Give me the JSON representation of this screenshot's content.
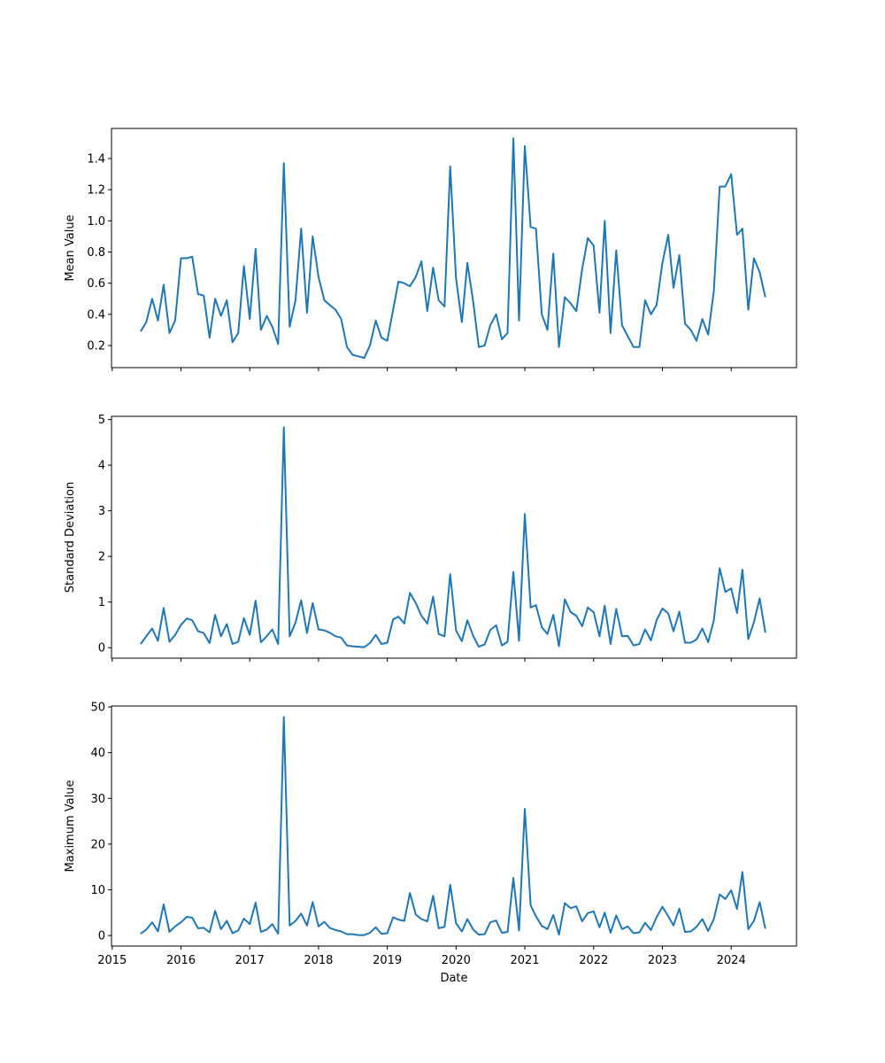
{
  "chart_data": [
    {
      "type": "line",
      "ylabel": "Mean Value",
      "xlabel": "",
      "x_start": "2015-06",
      "x_frequency": "monthly",
      "ylim": [
        0.058,
        1.593
      ],
      "yticks": [
        0.2,
        0.4,
        0.6,
        0.8,
        1.0,
        1.2,
        1.4
      ],
      "ytick_format": 1,
      "color": "#1f77b4",
      "values": [
        0.29,
        0.35,
        0.5,
        0.36,
        0.59,
        0.28,
        0.36,
        0.76,
        0.76,
        0.77,
        0.53,
        0.52,
        0.25,
        0.5,
        0.39,
        0.49,
        0.22,
        0.28,
        0.71,
        0.37,
        0.82,
        0.3,
        0.39,
        0.32,
        0.21,
        1.37,
        0.32,
        0.49,
        0.95,
        0.41,
        0.9,
        0.64,
        0.49,
        0.46,
        0.43,
        0.37,
        0.19,
        0.14,
        0.13,
        0.12,
        0.2,
        0.36,
        0.25,
        0.23,
        0.43,
        0.61,
        0.6,
        0.58,
        0.64,
        0.74,
        0.42,
        0.7,
        0.49,
        0.45,
        1.35,
        0.63,
        0.35,
        0.73,
        0.48,
        0.19,
        0.2,
        0.33,
        0.4,
        0.24,
        0.28,
        1.53,
        0.36,
        1.48,
        0.96,
        0.95,
        0.4,
        0.3,
        0.79,
        0.19,
        0.51,
        0.47,
        0.42,
        0.69,
        0.89,
        0.84,
        0.41,
        1.0,
        0.28,
        0.81,
        0.33,
        0.26,
        0.19,
        0.19,
        0.49,
        0.4,
        0.46,
        0.73,
        0.91,
        0.57,
        0.78,
        0.34,
        0.3,
        0.23,
        0.37,
        0.27,
        0.55,
        1.22,
        1.22,
        1.3,
        0.91,
        0.95,
        0.43,
        0.76,
        0.67,
        0.51
      ]
    },
    {
      "type": "line",
      "ylabel": "Standard Deviation",
      "xlabel": "",
      "x_start": "2015-06",
      "x_frequency": "monthly",
      "ylim": [
        -0.23,
        5.07
      ],
      "yticks": [
        0,
        1,
        2,
        3,
        4,
        5
      ],
      "ytick_format": 0,
      "color": "#1f77b4",
      "values": [
        0.08,
        0.25,
        0.42,
        0.15,
        0.87,
        0.13,
        0.28,
        0.5,
        0.64,
        0.6,
        0.36,
        0.32,
        0.1,
        0.72,
        0.25,
        0.52,
        0.08,
        0.13,
        0.65,
        0.28,
        1.03,
        0.12,
        0.25,
        0.4,
        0.08,
        4.83,
        0.25,
        0.55,
        1.04,
        0.32,
        0.98,
        0.4,
        0.38,
        0.33,
        0.25,
        0.22,
        0.05,
        0.03,
        0.02,
        0.01,
        0.1,
        0.28,
        0.08,
        0.11,
        0.62,
        0.68,
        0.53,
        1.2,
        0.98,
        0.7,
        0.53,
        1.12,
        0.3,
        0.25,
        1.61,
        0.38,
        0.14,
        0.6,
        0.26,
        0.02,
        0.07,
        0.39,
        0.49,
        0.05,
        0.13,
        1.66,
        0.15,
        2.93,
        0.88,
        0.93,
        0.45,
        0.3,
        0.72,
        0.03,
        1.06,
        0.78,
        0.7,
        0.47,
        0.88,
        0.78,
        0.25,
        0.92,
        0.08,
        0.85,
        0.25,
        0.26,
        0.05,
        0.08,
        0.4,
        0.16,
        0.6,
        0.86,
        0.75,
        0.36,
        0.79,
        0.11,
        0.11,
        0.18,
        0.42,
        0.12,
        0.6,
        1.74,
        1.22,
        1.3,
        0.76,
        1.71,
        0.19,
        0.56,
        1.08,
        0.33
      ]
    },
    {
      "type": "line",
      "ylabel": "Maximum Value",
      "xlabel": "Date",
      "x_start": "2015-06",
      "x_frequency": "monthly",
      "ylim": [
        -2.3,
        50.2
      ],
      "yticks": [
        0,
        10,
        20,
        30,
        40,
        50
      ],
      "ytick_format": 0,
      "color": "#1f77b4",
      "values": [
        0.4,
        1.3,
        2.9,
        0.9,
        6.8,
        0.8,
        2.0,
        2.9,
        4.1,
        3.9,
        1.6,
        1.7,
        0.7,
        5.4,
        1.4,
        3.2,
        0.5,
        1.1,
        3.7,
        2.5,
        7.2,
        0.8,
        1.3,
        2.5,
        0.4,
        47.8,
        2.2,
        3.2,
        4.8,
        2.2,
        7.3,
        2.0,
        3.0,
        1.7,
        1.2,
        0.9,
        0.3,
        0.3,
        0.1,
        0.1,
        0.6,
        1.8,
        0.4,
        0.5,
        4.0,
        3.5,
        3.2,
        9.3,
        4.6,
        3.6,
        3.1,
        8.7,
        1.6,
        1.9,
        11.1,
        2.7,
        0.9,
        3.6,
        1.3,
        0.2,
        0.3,
        2.9,
        3.3,
        0.6,
        0.8,
        12.6,
        1.1,
        27.7,
        6.6,
        4.2,
        2.1,
        1.4,
        4.5,
        0.2,
        7.1,
        6.0,
        6.4,
        3.1,
        4.9,
        5.3,
        1.8,
        5.0,
        0.6,
        4.4,
        1.4,
        2.0,
        0.5,
        0.7,
        2.8,
        1.2,
        4.0,
        6.3,
        4.2,
        2.2,
        5.9,
        0.8,
        0.9,
        1.9,
        3.6,
        1.0,
        3.6,
        9.0,
        8.0,
        9.9,
        5.8,
        13.9,
        1.4,
        3.2,
        7.3,
        1.5
      ]
    }
  ],
  "x_axis": {
    "xlim": [
      2014.99,
      2024.95
    ],
    "ticks": [
      "2015",
      "2016",
      "2017",
      "2018",
      "2019",
      "2020",
      "2021",
      "2022",
      "2023",
      "2024"
    ]
  }
}
